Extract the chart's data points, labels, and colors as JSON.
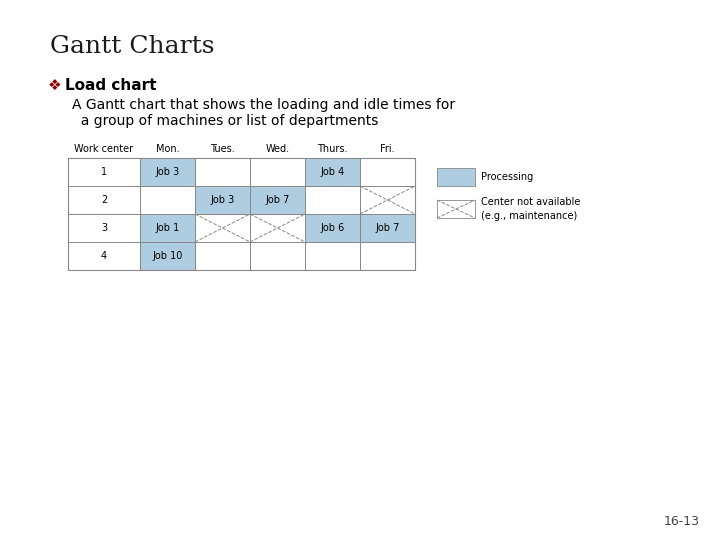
{
  "title": "Gantt Charts",
  "bullet_label": "Load chart",
  "bullet_color": "#8B0000",
  "sub_text_line1": "A Gantt chart that shows the loading and idle times for",
  "sub_text_line2": "  a group of machines or list of departments",
  "background_color": "#ffffff",
  "processing_color": "#aecde0",
  "col_headers": [
    "Work center",
    "Mon.",
    "Tues.",
    "Wed.",
    "Thurs.",
    "Fri."
  ],
  "rows": [
    1,
    2,
    3,
    4
  ],
  "processing_cells": [
    [
      1,
      "Mon."
    ],
    [
      1,
      "Thurs."
    ],
    [
      2,
      "Tues."
    ],
    [
      2,
      "Wed."
    ],
    [
      3,
      "Mon."
    ],
    [
      3,
      "Thurs."
    ],
    [
      3,
      "Fri."
    ],
    [
      4,
      "Mon."
    ]
  ],
  "cross_cells": [
    [
      2,
      "Fri."
    ],
    [
      3,
      "Tues."
    ],
    [
      3,
      "Wed."
    ]
  ],
  "cell_labels": [
    [
      1,
      "Mon.",
      "Job 3"
    ],
    [
      1,
      "Thurs.",
      "Job 4"
    ],
    [
      2,
      "Tues.",
      "Job 3"
    ],
    [
      2,
      "Wed.",
      "Job 7"
    ],
    [
      3,
      "Mon.",
      "Job 1"
    ],
    [
      3,
      "Thurs.",
      "Job 6"
    ],
    [
      3,
      "Fri.",
      "Job 7"
    ],
    [
      4,
      "Mon.",
      "Job 10"
    ]
  ],
  "legend_processing_label": "Processing",
  "legend_cross_label": "Center not available\n(e.g., maintenance)",
  "page_number": "16-13",
  "title_fontsize": 18,
  "bullet_fontsize": 11,
  "subtext_fontsize": 10,
  "table_fontsize": 7,
  "legend_fontsize": 7,
  "page_fontsize": 9
}
